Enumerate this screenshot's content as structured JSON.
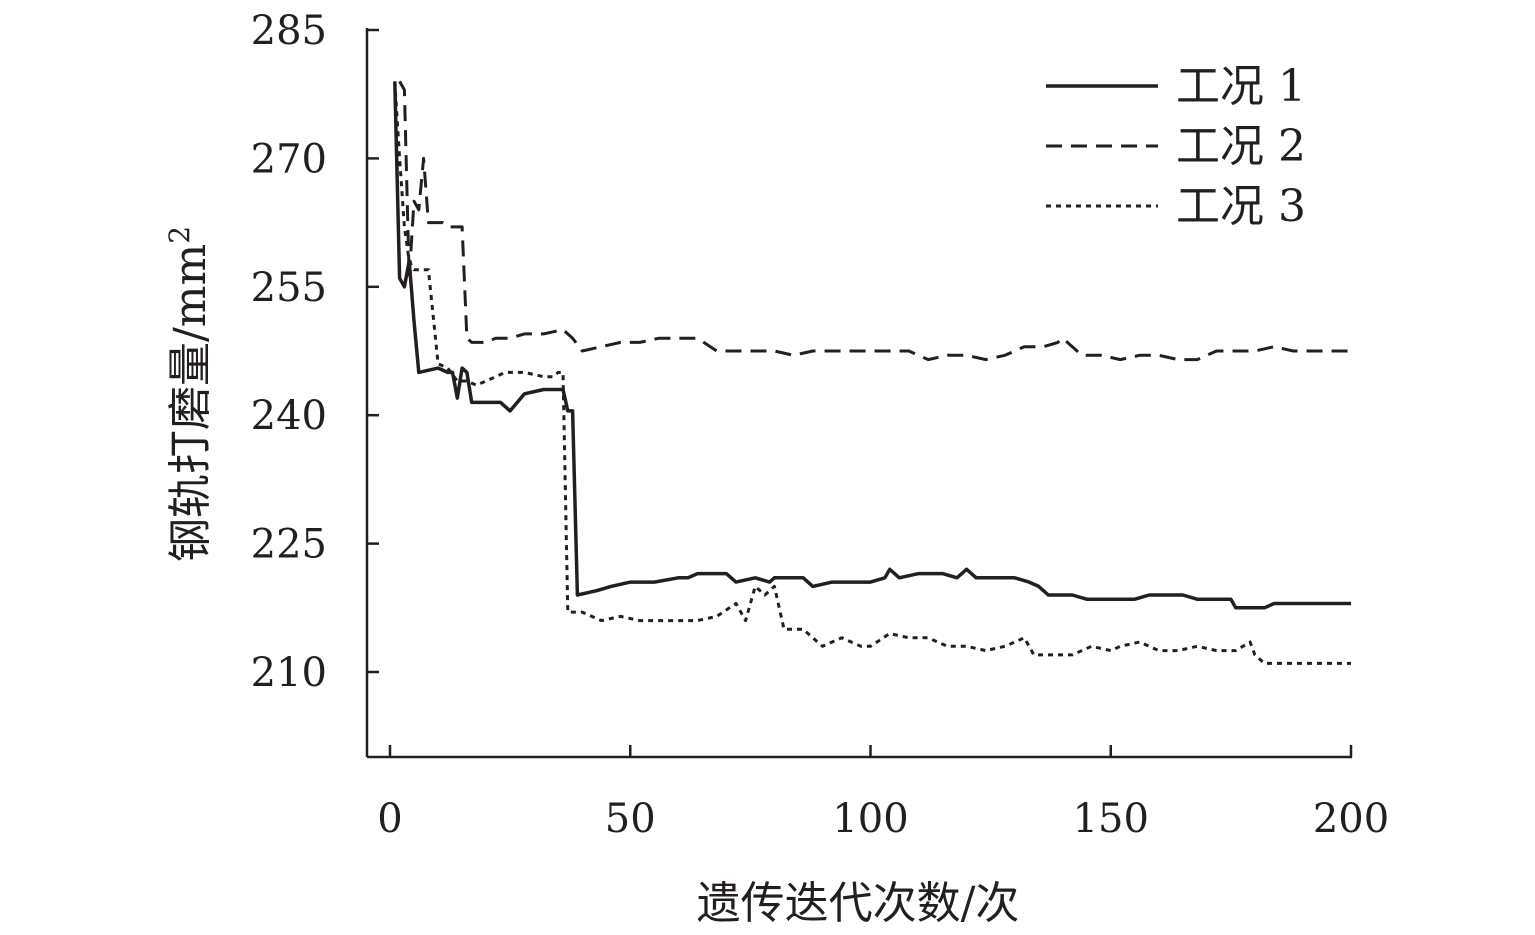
{
  "chart_data": {
    "type": "line",
    "xlabel": "遗传迭代次数/次",
    "ylabel": "钢轨打磨量/mm",
    "ylabel_sup": "2",
    "xlim": [
      0,
      200
    ],
    "ylim": [
      200,
      285
    ],
    "xticks": [
      0,
      50,
      100,
      150,
      200
    ],
    "yticks": [
      210,
      225,
      240,
      255,
      270,
      285
    ],
    "legend_position": "top-right",
    "grid": false,
    "series": [
      {
        "name": "工况 1",
        "style": "solid",
        "points": [
          [
            1,
            279
          ],
          [
            2,
            256
          ],
          [
            3,
            255
          ],
          [
            4,
            258
          ],
          [
            5,
            251
          ],
          [
            6,
            245
          ],
          [
            10,
            245.5
          ],
          [
            12,
            245
          ],
          [
            13,
            245
          ],
          [
            14,
            242
          ],
          [
            15,
            245.5
          ],
          [
            16,
            245
          ],
          [
            17,
            241.5
          ],
          [
            20,
            241.5
          ],
          [
            23,
            241.5
          ],
          [
            25,
            240.5
          ],
          [
            28,
            242.5
          ],
          [
            32,
            243
          ],
          [
            36,
            243
          ],
          [
            37,
            240.5
          ],
          [
            38,
            240.5
          ],
          [
            39,
            219
          ],
          [
            43,
            219.5
          ],
          [
            46,
            220
          ],
          [
            50,
            220.5
          ],
          [
            55,
            220.5
          ],
          [
            60,
            221
          ],
          [
            62,
            221
          ],
          [
            64,
            221.5
          ],
          [
            70,
            221.5
          ],
          [
            72,
            220.5
          ],
          [
            76,
            221
          ],
          [
            79,
            220.5
          ],
          [
            80,
            221
          ],
          [
            86,
            221
          ],
          [
            88,
            220
          ],
          [
            92,
            220.5
          ],
          [
            100,
            220.5
          ],
          [
            103,
            221
          ],
          [
            104,
            222
          ],
          [
            106,
            221
          ],
          [
            110,
            221.5
          ],
          [
            115,
            221.5
          ],
          [
            118,
            221
          ],
          [
            120,
            222
          ],
          [
            122,
            221
          ],
          [
            126,
            221
          ],
          [
            130,
            221
          ],
          [
            133,
            220.5
          ],
          [
            135,
            220
          ],
          [
            137,
            219
          ],
          [
            140,
            219
          ],
          [
            142,
            219
          ],
          [
            145,
            218.5
          ],
          [
            150,
            218.5
          ],
          [
            155,
            218.5
          ],
          [
            158,
            219
          ],
          [
            165,
            219
          ],
          [
            168,
            218.5
          ],
          [
            175,
            218.5
          ],
          [
            176,
            217.5
          ],
          [
            182,
            217.5
          ],
          [
            184,
            218
          ],
          [
            200,
            218
          ]
        ]
      },
      {
        "name": "工况 2",
        "style": "dashed",
        "points": [
          [
            2,
            279
          ],
          [
            3,
            278
          ],
          [
            4,
            256
          ],
          [
            5,
            265
          ],
          [
            6,
            264
          ],
          [
            7,
            270
          ],
          [
            8,
            262.5
          ],
          [
            11,
            262.5
          ],
          [
            12,
            262
          ],
          [
            15,
            262
          ],
          [
            16,
            249
          ],
          [
            17,
            248.5
          ],
          [
            20,
            248.5
          ],
          [
            22,
            249
          ],
          [
            25,
            249
          ],
          [
            28,
            249.5
          ],
          [
            32,
            249.5
          ],
          [
            36,
            250
          ],
          [
            38,
            249
          ],
          [
            40,
            247.5
          ],
          [
            44,
            248
          ],
          [
            48,
            248.5
          ],
          [
            52,
            248.5
          ],
          [
            56,
            249
          ],
          [
            60,
            249
          ],
          [
            64,
            249
          ],
          [
            68,
            247.5
          ],
          [
            72,
            247.5
          ],
          [
            76,
            247.5
          ],
          [
            80,
            247.5
          ],
          [
            84,
            247
          ],
          [
            88,
            247.5
          ],
          [
            92,
            247.5
          ],
          [
            96,
            247.5
          ],
          [
            100,
            247.5
          ],
          [
            104,
            247.5
          ],
          [
            108,
            247.5
          ],
          [
            112,
            246.5
          ],
          [
            116,
            247
          ],
          [
            120,
            247
          ],
          [
            124,
            246.5
          ],
          [
            128,
            247
          ],
          [
            132,
            248
          ],
          [
            136,
            248
          ],
          [
            139,
            248.5
          ],
          [
            140,
            249
          ],
          [
            142,
            248
          ],
          [
            144,
            247
          ],
          [
            148,
            247
          ],
          [
            152,
            246.5
          ],
          [
            156,
            247
          ],
          [
            160,
            247
          ],
          [
            164,
            246.5
          ],
          [
            168,
            246.5
          ],
          [
            172,
            247.5
          ],
          [
            176,
            247.5
          ],
          [
            180,
            247.5
          ],
          [
            184,
            248
          ],
          [
            188,
            247.5
          ],
          [
            192,
            247.5
          ],
          [
            196,
            247.5
          ],
          [
            200,
            247.5
          ]
        ]
      },
      {
        "name": "工况 3",
        "style": "dotted",
        "points": [
          [
            1,
            279
          ],
          [
            2,
            270
          ],
          [
            3,
            262
          ],
          [
            4,
            258
          ],
          [
            5,
            257
          ],
          [
            7,
            257
          ],
          [
            8,
            257
          ],
          [
            10,
            246
          ],
          [
            12,
            245.5
          ],
          [
            14,
            244
          ],
          [
            15,
            244
          ],
          [
            16,
            244
          ],
          [
            18,
            243.5
          ],
          [
            20,
            244
          ],
          [
            24,
            245
          ],
          [
            28,
            245
          ],
          [
            32,
            244.5
          ],
          [
            34,
            244.5
          ],
          [
            35,
            245
          ],
          [
            36,
            245
          ],
          [
            37,
            217
          ],
          [
            40,
            217
          ],
          [
            44,
            216
          ],
          [
            48,
            216.5
          ],
          [
            52,
            216
          ],
          [
            56,
            216
          ],
          [
            60,
            216
          ],
          [
            64,
            216
          ],
          [
            68,
            216.5
          ],
          [
            72,
            218
          ],
          [
            74,
            216
          ],
          [
            76,
            220
          ],
          [
            78,
            219
          ],
          [
            80,
            220
          ],
          [
            82,
            215
          ],
          [
            86,
            215
          ],
          [
            88,
            214
          ],
          [
            90,
            213
          ],
          [
            94,
            214
          ],
          [
            98,
            213
          ],
          [
            100,
            213
          ],
          [
            104,
            214.5
          ],
          [
            108,
            214
          ],
          [
            112,
            214
          ],
          [
            116,
            213
          ],
          [
            120,
            213
          ],
          [
            124,
            212.5
          ],
          [
            128,
            213
          ],
          [
            132,
            214
          ],
          [
            134,
            212
          ],
          [
            138,
            212
          ],
          [
            142,
            212
          ],
          [
            146,
            213
          ],
          [
            150,
            212.5
          ],
          [
            152,
            213
          ],
          [
            156,
            213.5
          ],
          [
            160,
            212.5
          ],
          [
            164,
            212.5
          ],
          [
            168,
            213
          ],
          [
            172,
            212.5
          ],
          [
            176,
            212.5
          ],
          [
            179,
            213.5
          ],
          [
            180,
            212
          ],
          [
            182,
            211
          ],
          [
            186,
            211
          ],
          [
            190,
            211
          ],
          [
            196,
            211
          ],
          [
            200,
            211
          ]
        ]
      }
    ]
  }
}
